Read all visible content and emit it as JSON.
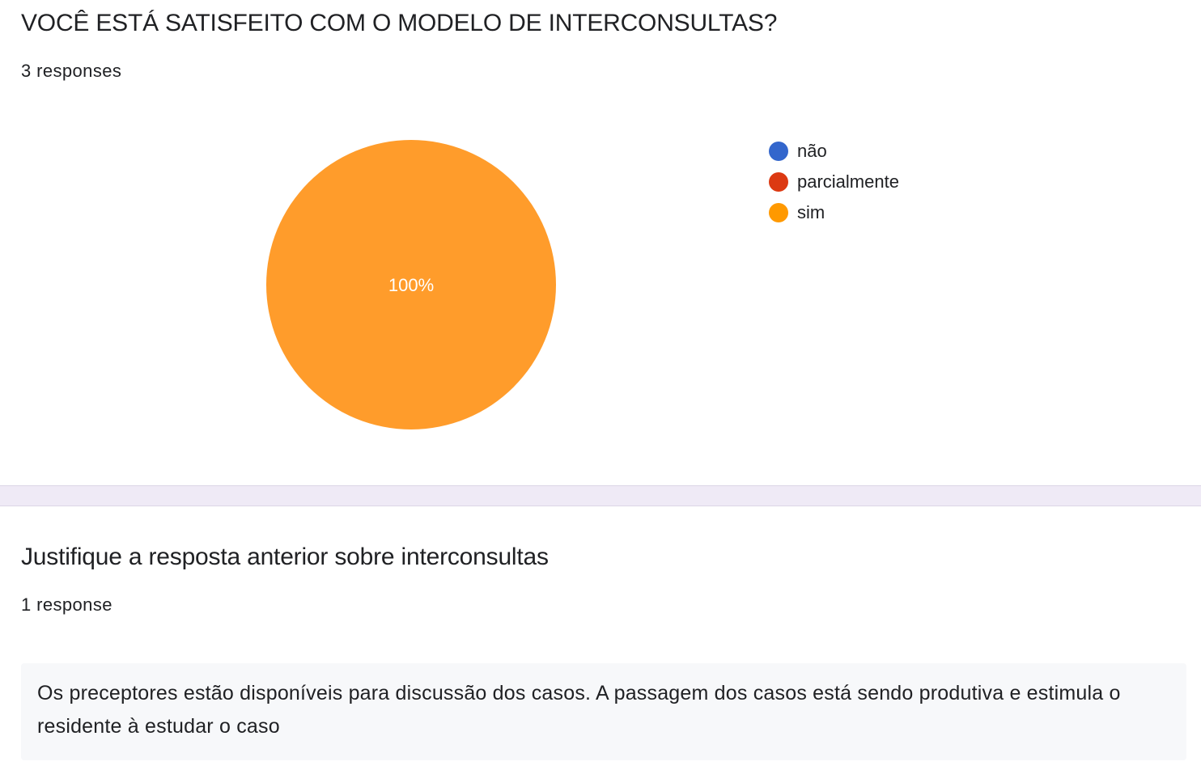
{
  "question1": {
    "title": "VOCÊ ESTÁ SATISFEITO COM O MODELO DE INTERCONSULTAS?",
    "response_count": "3 responses"
  },
  "question2": {
    "title": "Justifique a resposta anterior sobre interconsultas",
    "response_count": "1 response",
    "answers": [
      "Os preceptores estão disponíveis para discussão dos casos. A passagem dos casos está sendo produtiva e estimula o residente à estudar o caso"
    ]
  },
  "colors": {
    "nao": "#3366cc",
    "parcialmente": "#dc3912",
    "sim": "#ff9900",
    "pie_fill": "#ff9c2b",
    "divider": "#efeaf6",
    "answer_bg": "#f7f8fa"
  },
  "chart_data": {
    "type": "pie",
    "categories": [
      "não",
      "parcialmente",
      "sim"
    ],
    "values": [
      0,
      0,
      3
    ],
    "percent_labels": [
      "",
      "",
      "100%"
    ],
    "colors": [
      "#3366cc",
      "#dc3912",
      "#ff9c2b"
    ],
    "legend_position": "right"
  }
}
